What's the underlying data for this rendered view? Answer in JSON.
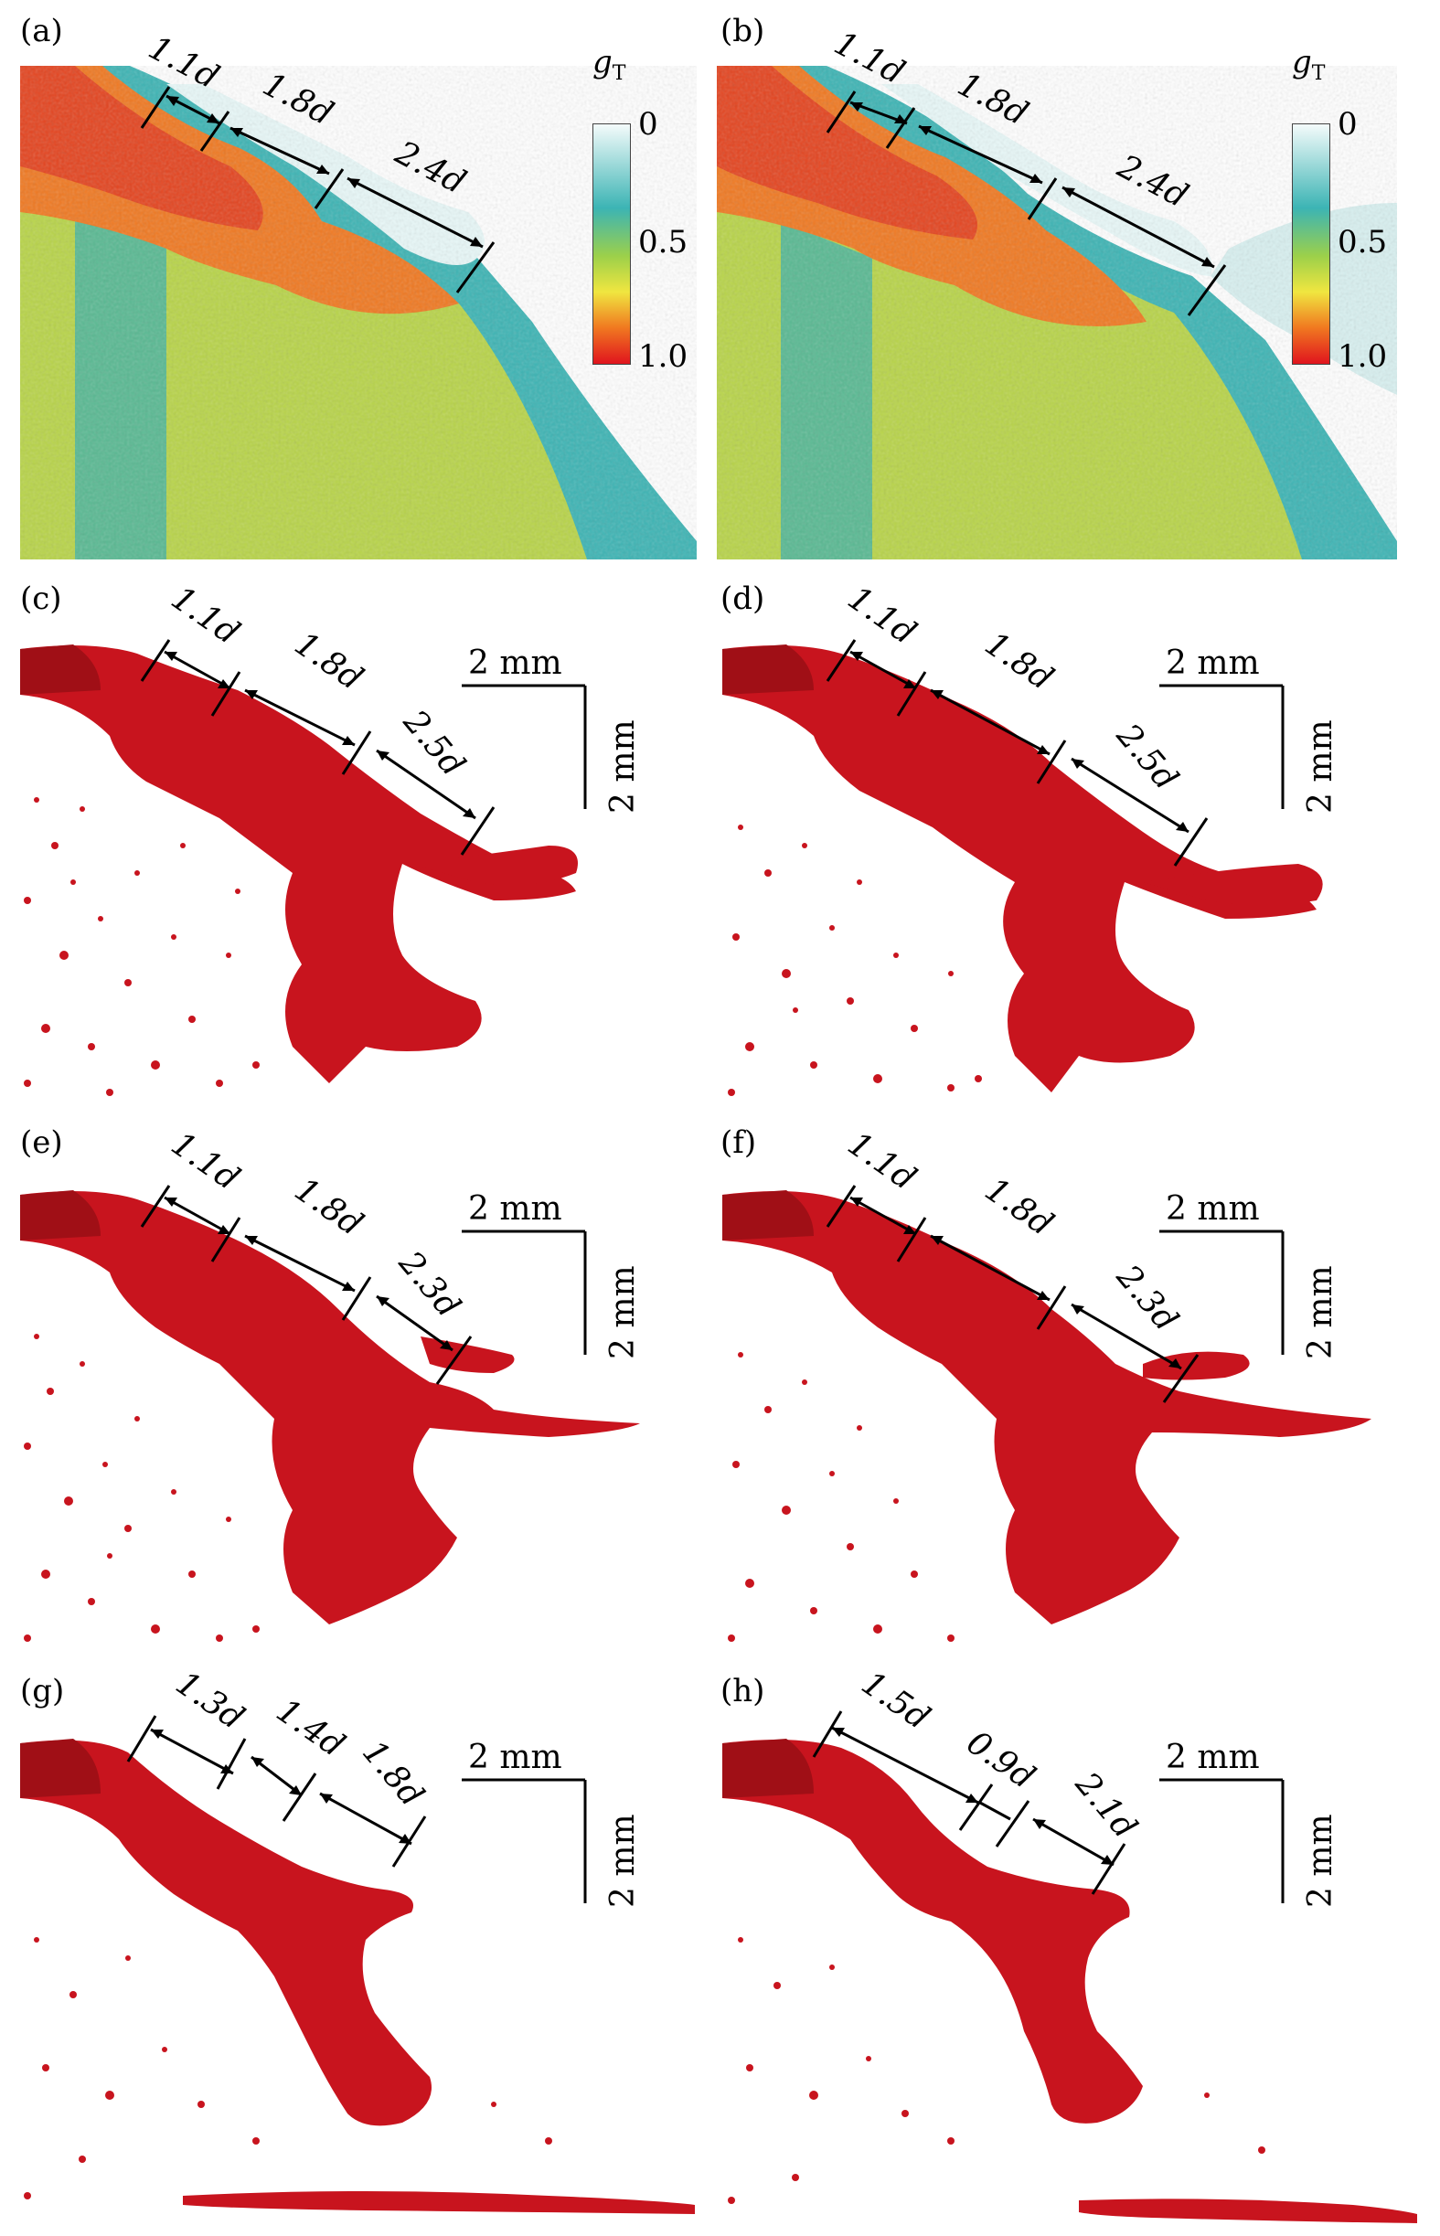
{
  "colorbar": {
    "label": "g",
    "label_sub": "T",
    "ticks": [
      "0",
      "0.5",
      "1.0"
    ]
  },
  "scalebar": {
    "horizontal": "2 mm",
    "vertical": "2 mm"
  },
  "panels": [
    {
      "id": "a",
      "label": "(a)",
      "type": "heatmap",
      "measures": [
        "1.1d",
        "1.8d",
        "2.4d"
      ]
    },
    {
      "id": "b",
      "label": "(b)",
      "type": "heatmap",
      "measures": [
        "1.1d",
        "1.8d",
        "2.4d"
      ]
    },
    {
      "id": "c",
      "label": "(c)",
      "type": "render",
      "measures": [
        "1.1d",
        "1.8d",
        "2.5d"
      ]
    },
    {
      "id": "d",
      "label": "(d)",
      "type": "render",
      "measures": [
        "1.1d",
        "1.8d",
        "2.5d"
      ]
    },
    {
      "id": "e",
      "label": "(e)",
      "type": "render",
      "measures": [
        "1.1d",
        "1.8d",
        "2.3d"
      ]
    },
    {
      "id": "f",
      "label": "(f)",
      "type": "render",
      "measures": [
        "1.1d",
        "1.8d",
        "2.3d"
      ]
    },
    {
      "id": "g",
      "label": "(g)",
      "type": "render",
      "measures": [
        "1.3d",
        "1.4d",
        "1.8d"
      ]
    },
    {
      "id": "h",
      "label": "(h)",
      "type": "render",
      "measures": [
        "1.5d",
        "0.9d",
        "2.1d"
      ]
    }
  ],
  "colors": {
    "jet_red": "#c8141e",
    "jet_orange": "#f07820",
    "jet_yellow": "#e8e040",
    "jet_green": "#8cc850",
    "jet_teal": "#3cb4b4",
    "jet_white": "#e8f8f8",
    "liquid_red": "#c8141e"
  }
}
